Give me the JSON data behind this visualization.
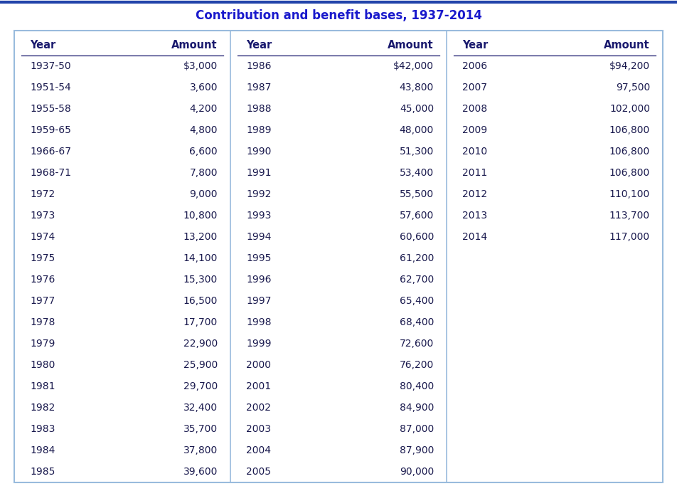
{
  "title": "Contribution and benefit bases, 1937-2014",
  "title_color": "#1a1acc",
  "title_fontsize": 12,
  "header_color": "#1a1a6e",
  "header_fontsize": 10.5,
  "data_fontsize": 10,
  "text_color": "#1a1a4e",
  "bg_color": "#ffffff",
  "outer_border_color": "#2244aa",
  "inner_border_color": "#99bbdd",
  "col1_years": [
    "1937-50",
    "1951-54",
    "1955-58",
    "1959-65",
    "1966-67",
    "1968-71",
    "1972",
    "1973",
    "1974",
    "1975",
    "1976",
    "1977",
    "1978",
    "1979",
    "1980",
    "1981",
    "1982",
    "1983",
    "1984",
    "1985"
  ],
  "col1_amounts": [
    "$3,000",
    "3,600",
    "4,200",
    "4,800",
    "6,600",
    "7,800",
    "9,000",
    "10,800",
    "13,200",
    "14,100",
    "15,300",
    "16,500",
    "17,700",
    "22,900",
    "25,900",
    "29,700",
    "32,400",
    "35,700",
    "37,800",
    "39,600"
  ],
  "col2_years": [
    "1986",
    "1987",
    "1988",
    "1989",
    "1990",
    "1991",
    "1992",
    "1993",
    "1994",
    "1995",
    "1996",
    "1997",
    "1998",
    "1999",
    "2000",
    "2001",
    "2002",
    "2003",
    "2004",
    "2005"
  ],
  "col2_amounts": [
    "$42,000",
    "43,800",
    "45,000",
    "48,000",
    "51,300",
    "53,400",
    "55,500",
    "57,600",
    "60,600",
    "61,200",
    "62,700",
    "65,400",
    "68,400",
    "72,600",
    "76,200",
    "80,400",
    "84,900",
    "87,000",
    "87,900",
    "90,000"
  ],
  "col3_years": [
    "2006",
    "2007",
    "2008",
    "2009",
    "2010",
    "2011",
    "2012",
    "2013",
    "2014"
  ],
  "col3_amounts": [
    "$94,200",
    "97,500",
    "102,000",
    "106,800",
    "106,800",
    "106,800",
    "110,100",
    "113,700",
    "117,000"
  ]
}
